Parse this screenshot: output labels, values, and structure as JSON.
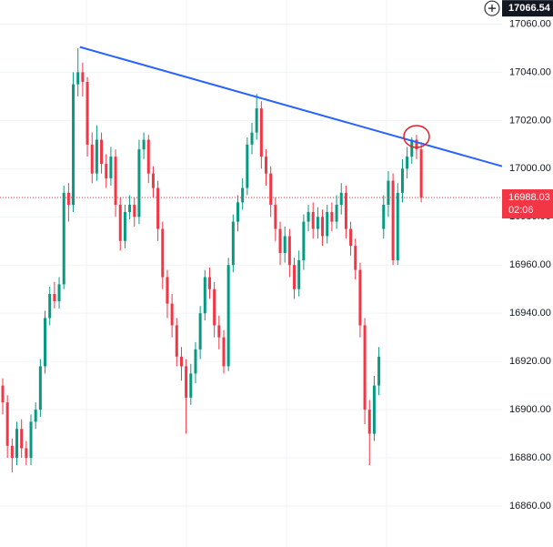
{
  "chart_data": {
    "type": "candlestick",
    "up_color": "#089981",
    "down_color": "#f23645",
    "ylim": [
      16843,
      17070
    ],
    "yticks": [
      {
        "value": 16860,
        "label": "16860.00"
      },
      {
        "value": 16880,
        "label": "16880.00"
      },
      {
        "value": 16900,
        "label": "16900.00"
      },
      {
        "value": 16920,
        "label": "16920.00"
      },
      {
        "value": 16940,
        "label": "16940.00"
      },
      {
        "value": 16960,
        "label": "16960.00"
      },
      {
        "value": 16980,
        "label": "16980.00"
      },
      {
        "value": 17000,
        "label": "17000.00"
      },
      {
        "value": 17020,
        "label": "17020.00"
      },
      {
        "value": 17040,
        "label": "17040.00"
      },
      {
        "value": 17060,
        "label": "17060.00"
      }
    ],
    "open": [
      16910,
      16903,
      16885,
      16880,
      16892,
      16884,
      16880,
      16895,
      16900,
      16918,
      16938,
      16948,
      16945,
      16952,
      16990,
      16985,
      17035,
      17040,
      17036,
      17010,
      16998,
      17012,
      17002,
      16996,
      17005,
      16985,
      16970,
      16982,
      16985,
      16980,
      17008,
      17012,
      16998,
      16992,
      16975,
      16955,
      16944,
      16935,
      16922,
      16918,
      16905,
      16915,
      16925,
      16940,
      16955,
      16950,
      16935,
      16930,
      16918,
      16960,
      16978,
      16986,
      16992,
      17010,
      17015,
      17025,
      17005,
      16998,
      16985,
      16975,
      16965,
      16972,
      16960,
      16950,
      16962,
      16978,
      16982,
      16975,
      16980,
      16972,
      16982,
      16978,
      16985,
      16990,
      16975,
      16968,
      16958,
      16935,
      16900,
      16890,
      16910,
      16975,
      16985,
      16995,
      16962,
      16990,
      17000,
      17005,
      17012,
      17008
    ],
    "high": [
      16913,
      16906,
      16888,
      16895,
      16896,
      16887,
      16898,
      16903,
      16921,
      16941,
      16951,
      16953,
      16955,
      16993,
      16994,
      17040,
      17050,
      17044,
      17038,
      17015,
      17018,
      17015,
      17006,
      17009,
      17008,
      16988,
      16985,
      16989,
      16988,
      17012,
      17015,
      17014,
      17001,
      16995,
      16978,
      16958,
      16948,
      16938,
      16926,
      16921,
      16919,
      16928,
      16943,
      16958,
      16959,
      16953,
      16939,
      16933,
      16963,
      16981,
      16989,
      16996,
      17013,
      17019,
      17031,
      17028,
      17008,
      17001,
      16988,
      16978,
      16976,
      16975,
      16963,
      16966,
      16981,
      16985,
      16986,
      16984,
      16983,
      16985,
      16986,
      16989,
      16994,
      16993,
      16978,
      16971,
      16961,
      16938,
      16904,
      16914,
      16926,
      16989,
      16999,
      16998,
      16994,
      17004,
      17009,
      17013,
      17014,
      17011
    ],
    "low": [
      16898,
      16880,
      16874,
      16877,
      16880,
      16877,
      16877,
      16892,
      16897,
      16915,
      16935,
      16942,
      16942,
      16950,
      16978,
      16982,
      17030,
      17030,
      17005,
      16994,
      16995,
      16998,
      16992,
      16993,
      16980,
      16966,
      16967,
      16979,
      16976,
      16977,
      17004,
      16994,
      16988,
      16970,
      16950,
      16938,
      16930,
      16918,
      16912,
      16890,
      16902,
      16911,
      16921,
      16937,
      16946,
      16930,
      16925,
      16915,
      16916,
      16957,
      16974,
      16983,
      16989,
      17006,
      17012,
      17000,
      16993,
      16980,
      16970,
      16960,
      16961,
      16955,
      16946,
      16947,
      16958,
      16974,
      16971,
      16971,
      16968,
      16969,
      16974,
      16975,
      16981,
      16971,
      16964,
      16954,
      16930,
      16894,
      16877,
      16887,
      16906,
      16971,
      16980,
      16960,
      16960,
      16986,
      16996,
      17002,
      17004,
      16986
    ],
    "close": [
      16903,
      16885,
      16880,
      16892,
      16884,
      16880,
      16895,
      16900,
      16918,
      16938,
      16948,
      16945,
      16952,
      16990,
      16985,
      17035,
      17040,
      17036,
      17010,
      16998,
      17012,
      17002,
      16996,
      17005,
      16985,
      16970,
      16982,
      16985,
      16980,
      17008,
      17012,
      16998,
      16992,
      16975,
      16955,
      16944,
      16935,
      16922,
      16918,
      16905,
      16915,
      16925,
      16940,
      16955,
      16950,
      16935,
      16930,
      16918,
      16960,
      16978,
      16986,
      16992,
      17010,
      17015,
      17025,
      17005,
      16998,
      16985,
      16975,
      16965,
      16972,
      16960,
      16950,
      16962,
      16978,
      16982,
      16975,
      16980,
      16972,
      16982,
      16978,
      16985,
      16990,
      16975,
      16968,
      16958,
      16935,
      16900,
      16890,
      16910,
      16922,
      16985,
      16995,
      16962,
      16990,
      17000,
      17005,
      17012,
      17008,
      16988
    ],
    "trendline": {
      "x": [
        16.4,
        106.2
      ],
      "values": [
        17050.5,
        17001
      ],
      "color": "#2962ff"
    },
    "last_price": 16988.03,
    "countdown": "02:06",
    "crosshair_price": 17066.54
  }
}
